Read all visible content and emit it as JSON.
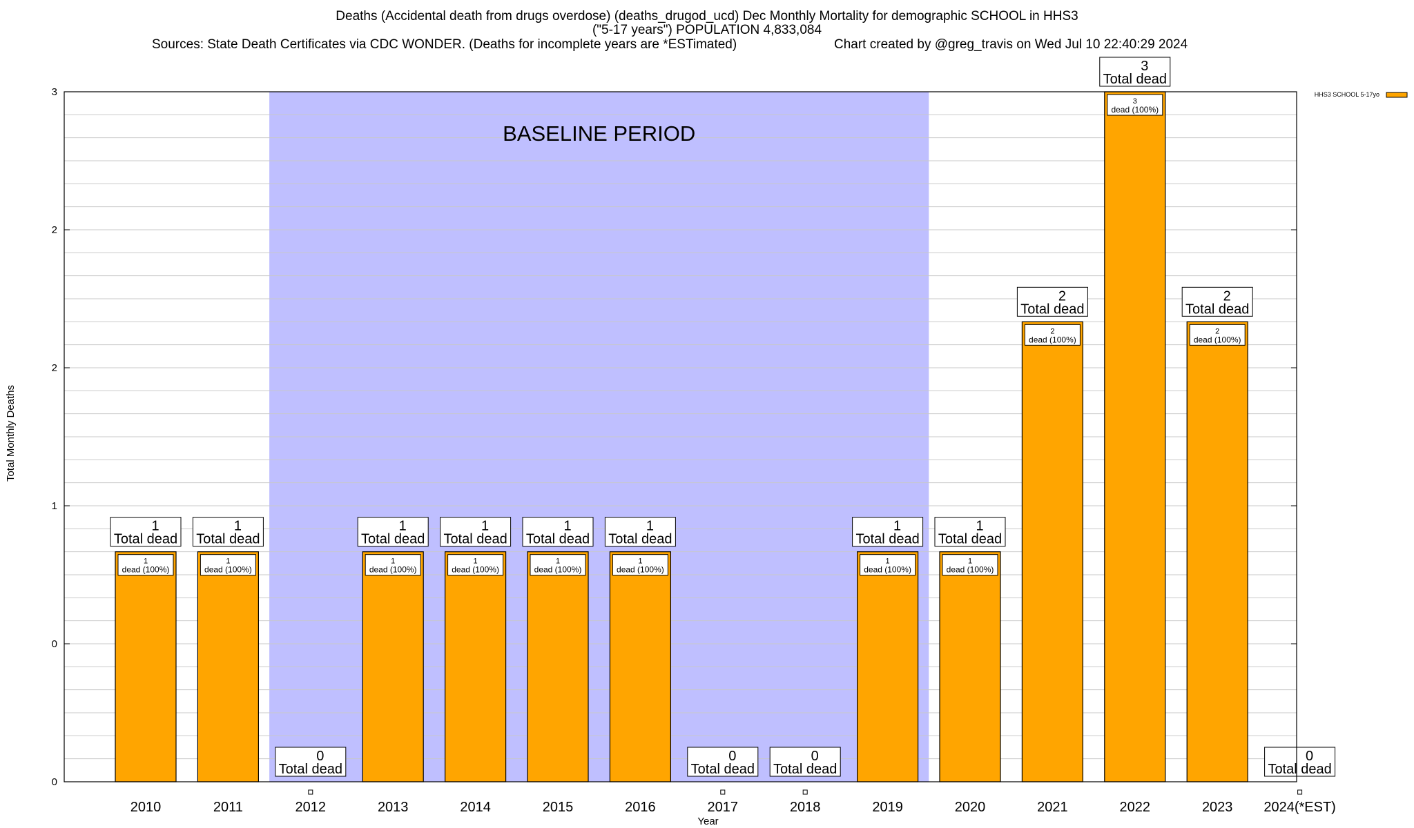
{
  "header": {
    "title_line1": "Deaths (Accidental death from drugs overdose) (deaths_drugod_ucd) Dec Monthly Mortality for demographic SCHOOL in HHS3",
    "title_line2": "(\"5-17 years\") POPULATION 4,833,084",
    "sources": "Sources: State Death Certificates via CDC WONDER. (Deaths for incomplete years are *ESTimated)",
    "credit": "Chart created by @greg_travis on Wed Jul 10 22:40:29 2024"
  },
  "colors": {
    "bar_fill": "#FFA500",
    "bar_stroke": "#000000",
    "baseline_fill": "#BFBFFF",
    "grid": "#C8C8C8"
  },
  "chart_data": {
    "type": "bar",
    "xlabel": "Year",
    "ylabel": "Total Monthly Deaths",
    "ylim": [
      0,
      3
    ],
    "y_tick_labels": [
      "0",
      "0",
      "1",
      "2",
      "2",
      "3"
    ],
    "grid": true,
    "legend": {
      "label": "HHS3 SCHOOL 5-17yo",
      "placement": "top-right"
    },
    "baseline": {
      "label": "BASELINE PERIOD",
      "start": "2012",
      "end": "2019"
    },
    "categories": [
      "2010",
      "2011",
      "2012",
      "2013",
      "2014",
      "2015",
      "2016",
      "2017",
      "2018",
      "2019",
      "2020",
      "2021",
      "2022",
      "2023",
      "2024(*EST)"
    ],
    "values": [
      1,
      1,
      0,
      1,
      1,
      1,
      1,
      0,
      0,
      1,
      1,
      2,
      3,
      2,
      0
    ],
    "total_label": "Total dead",
    "inner_label_suffix": "dead (100%)"
  }
}
